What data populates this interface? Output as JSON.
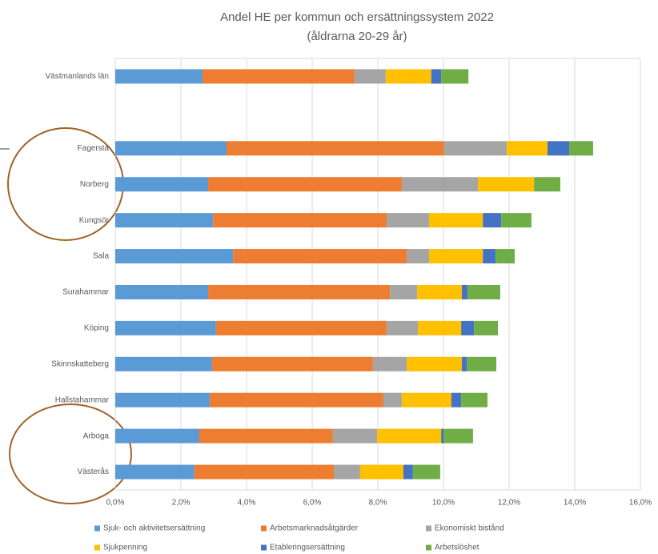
{
  "chart_data": {
    "type": "stacked-barh",
    "title": "Andel HE per kommun och ersättningssystem 2022",
    "subtitle": "(åldrarna 20-29 år)",
    "categories": [
      "Västmanlands län",
      null,
      "Fagersta",
      "Norberg",
      "Kungsör",
      "Sala",
      "Surahammar",
      "Köping",
      "Skinnskatteberg",
      "Hallstahammar",
      "Arboga",
      "Västerås"
    ],
    "series": [
      {
        "name": "Sjuk- och aktivitetsersättning",
        "color": "#5b9bd5",
        "values": [
          2.66,
          null,
          3.39,
          2.83,
          2.98,
          3.59,
          2.83,
          3.07,
          2.95,
          2.88,
          2.56,
          2.41
        ]
      },
      {
        "name": "Arbetsmarknadsåtgärder",
        "color": "#ed7d31",
        "values": [
          4.63,
          null,
          6.63,
          5.9,
          5.29,
          5.29,
          5.54,
          5.2,
          4.9,
          5.29,
          4.07,
          4.25
        ]
      },
      {
        "name": "Ekonomiskt bistånd",
        "color": "#a5a5a5",
        "values": [
          0.95,
          null,
          1.91,
          2.32,
          1.29,
          0.68,
          0.83,
          0.95,
          1.03,
          0.56,
          1.35,
          0.8
        ]
      },
      {
        "name": "Sjukpenning",
        "color": "#ffc000",
        "values": [
          1.39,
          null,
          1.24,
          1.71,
          1.64,
          1.64,
          1.36,
          1.32,
          1.68,
          1.51,
          1.95,
          1.32
        ]
      },
      {
        "name": "Etableringsersättning",
        "color": "#4472c4",
        "values": [
          0.3,
          null,
          0.66,
          0,
          0.56,
          0.39,
          0.17,
          0.39,
          0.15,
          0.3,
          0.07,
          0.29
        ]
      },
      {
        "name": "Arbetslöshet",
        "color": "#70ad47",
        "values": [
          0.83,
          null,
          0.73,
          0.8,
          0.92,
          0.58,
          1.0,
          0.73,
          0.9,
          0.8,
          0.9,
          0.83
        ]
      }
    ],
    "xlim": [
      0,
      16
    ],
    "xticks": [
      {
        "value": 0,
        "label": "0,0%"
      },
      {
        "value": 2,
        "label": "2,0%"
      },
      {
        "value": 4,
        "label": "4,0%"
      },
      {
        "value": 6,
        "label": "6,0%"
      },
      {
        "value": 8,
        "label": "8,0%"
      },
      {
        "value": 10,
        "label": "10,0%"
      },
      {
        "value": 12,
        "label": "12,0%"
      },
      {
        "value": 14,
        "label": "14,0%"
      },
      {
        "value": 16,
        "label": "16,0%"
      }
    ],
    "grid": true
  }
}
